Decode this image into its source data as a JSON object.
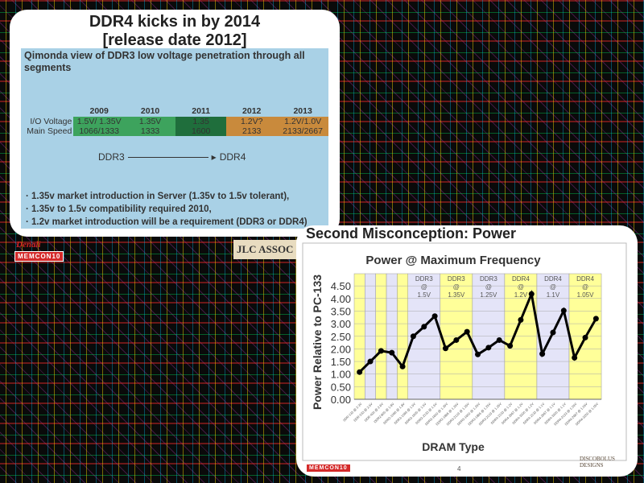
{
  "slide1": {
    "title_line1": "DDR4 kicks in by 2014",
    "title_line2": "[release date 2012]",
    "subtitle": "Qimonda view of  DDR3 low voltage penetration through all segments",
    "table": {
      "years": [
        "2009",
        "2010",
        "2011",
        "2012",
        "2013"
      ],
      "rows": [
        {
          "label": "I/O Voltage",
          "values": [
            "1.5V/ 1.35V",
            "1.35V",
            "1.35",
            "1.2V?",
            "1.2V/1.0V"
          ]
        },
        {
          "label": "Main Speed",
          "values": [
            "1066/1333",
            "1333",
            "1600",
            "2133",
            "2133/2667"
          ]
        }
      ]
    },
    "arrow_from": "DDR3",
    "arrow_to": "DDR4",
    "bullets": [
      "1.35v market introduction in Server (1.35v to 1.5v tolerant),",
      "1.35v to 1.5v compatibility required 2010,",
      "1.2v market introduction will be a requirement (DDR3 or DDR4)"
    ]
  },
  "logos": {
    "denali": "Denali",
    "memcon": "MEMCON10",
    "jlc": "JLC ASSOC",
    "discobolus": "DISCOBOLUS DESIGNS"
  },
  "slide2": {
    "title": "Second Misconception: Power",
    "page_number": "4"
  },
  "chart_data": {
    "type": "line",
    "title": "Power @ Maximum Frequency",
    "xlabel": "DRAM Type",
    "ylabel": "Power Relative to PC-133",
    "ylim": [
      0,
      4.5
    ],
    "yticks": [
      "0.00",
      "0.50",
      "1.00",
      "1.50",
      "2.00",
      "2.50",
      "3.00",
      "3.50",
      "4.00",
      "4.50"
    ],
    "categories": [
      "SDR-133 @ 3.3V",
      "DDR-333 @ 2.5V",
      "DDR-400 @ 2.6V",
      "DDR2-800 @ 1.8V",
      "DDR2-1066 @ 1.8V",
      "DDR3-1066 @ 1.5V",
      "DDR3-1600 @ 1.5V",
      "DDR3-2133 @ 1.5V",
      "DDR3-1600 @ 1.35V",
      "DDR3-1866 @ 1.35V",
      "DDR3-2133 @ 1.35V",
      "DDR3-1600 @ 1.25V",
      "DDR3-1866 @ 1.25V",
      "DDR3-2133 @ 1.25V",
      "DDR4-2133 @ 1.2V",
      "DDR4-2667 @ 1.2V",
      "DDR4-3200 @ 1.2V",
      "DDR4-2133 @ 1.1V",
      "DDR4-2667 @ 1.1V",
      "DDR4-3200 @ 1.1V",
      "DDR4-2133 @ 1.05V",
      "DDR4-2667 @ 1.05V",
      "DDR4-3200 @ 1.05V"
    ],
    "values": [
      1.08,
      1.5,
      1.92,
      1.85,
      1.3,
      2.5,
      2.88,
      3.3,
      2.02,
      2.35,
      2.68,
      1.78,
      2.05,
      2.35,
      2.12,
      3.15,
      4.18,
      1.8,
      2.65,
      3.52,
      1.65,
      2.45,
      3.2
    ],
    "groups": [
      {
        "name": "DDR3",
        "at": "@",
        "voltage": "1.5V"
      },
      {
        "name": "DDR3",
        "at": "@",
        "voltage": "1.35V"
      },
      {
        "name": "DDR3",
        "at": "@",
        "voltage": "1.25V"
      },
      {
        "name": "DDR4",
        "at": "@",
        "voltage": "1.2V"
      },
      {
        "name": "DDR4",
        "at": "@",
        "voltage": "1.1V"
      },
      {
        "name": "DDR4",
        "at": "@",
        "voltage": "1.05V"
      }
    ],
    "colors": {
      "yellow": "#ffff99",
      "lavender": "#e4e4f8",
      "line": "#000000"
    }
  }
}
